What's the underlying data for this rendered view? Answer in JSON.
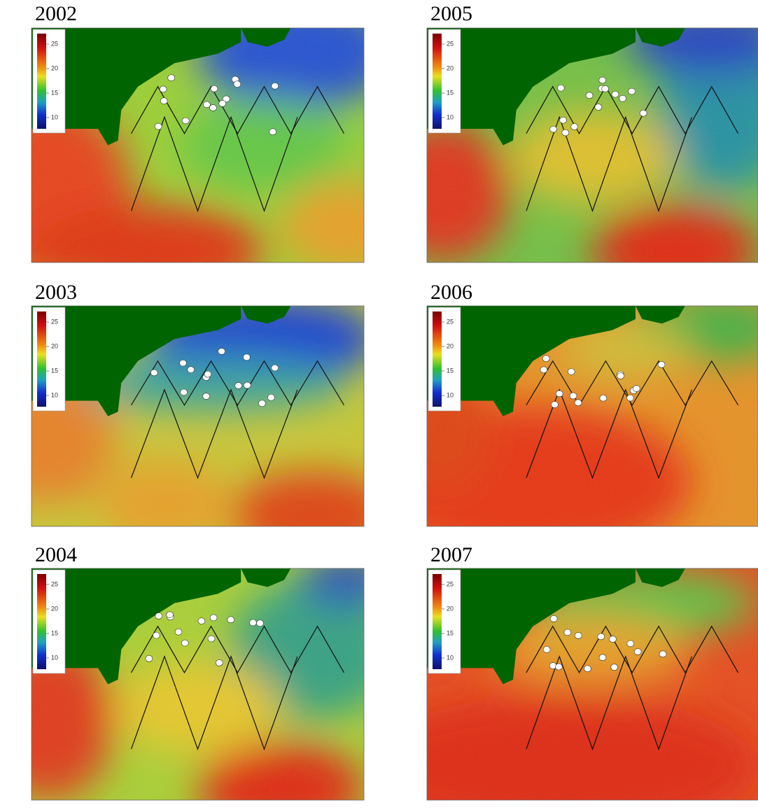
{
  "panels": [
    {
      "title": "2002",
      "colorbar_ticks": [
        25,
        20,
        15,
        10
      ]
    },
    {
      "title": "2005",
      "colorbar_ticks": [
        25,
        20,
        15,
        10
      ]
    },
    {
      "title": "2003",
      "colorbar_ticks": [
        25,
        20,
        15,
        10
      ]
    },
    {
      "title": "2006",
      "colorbar_ticks": [
        25,
        20,
        15,
        10
      ]
    },
    {
      "title": "2004",
      "colorbar_ticks": [
        25,
        20,
        15,
        10
      ]
    },
    {
      "title": "2007",
      "colorbar_ticks": [
        25,
        20,
        15,
        10
      ]
    }
  ]
}
